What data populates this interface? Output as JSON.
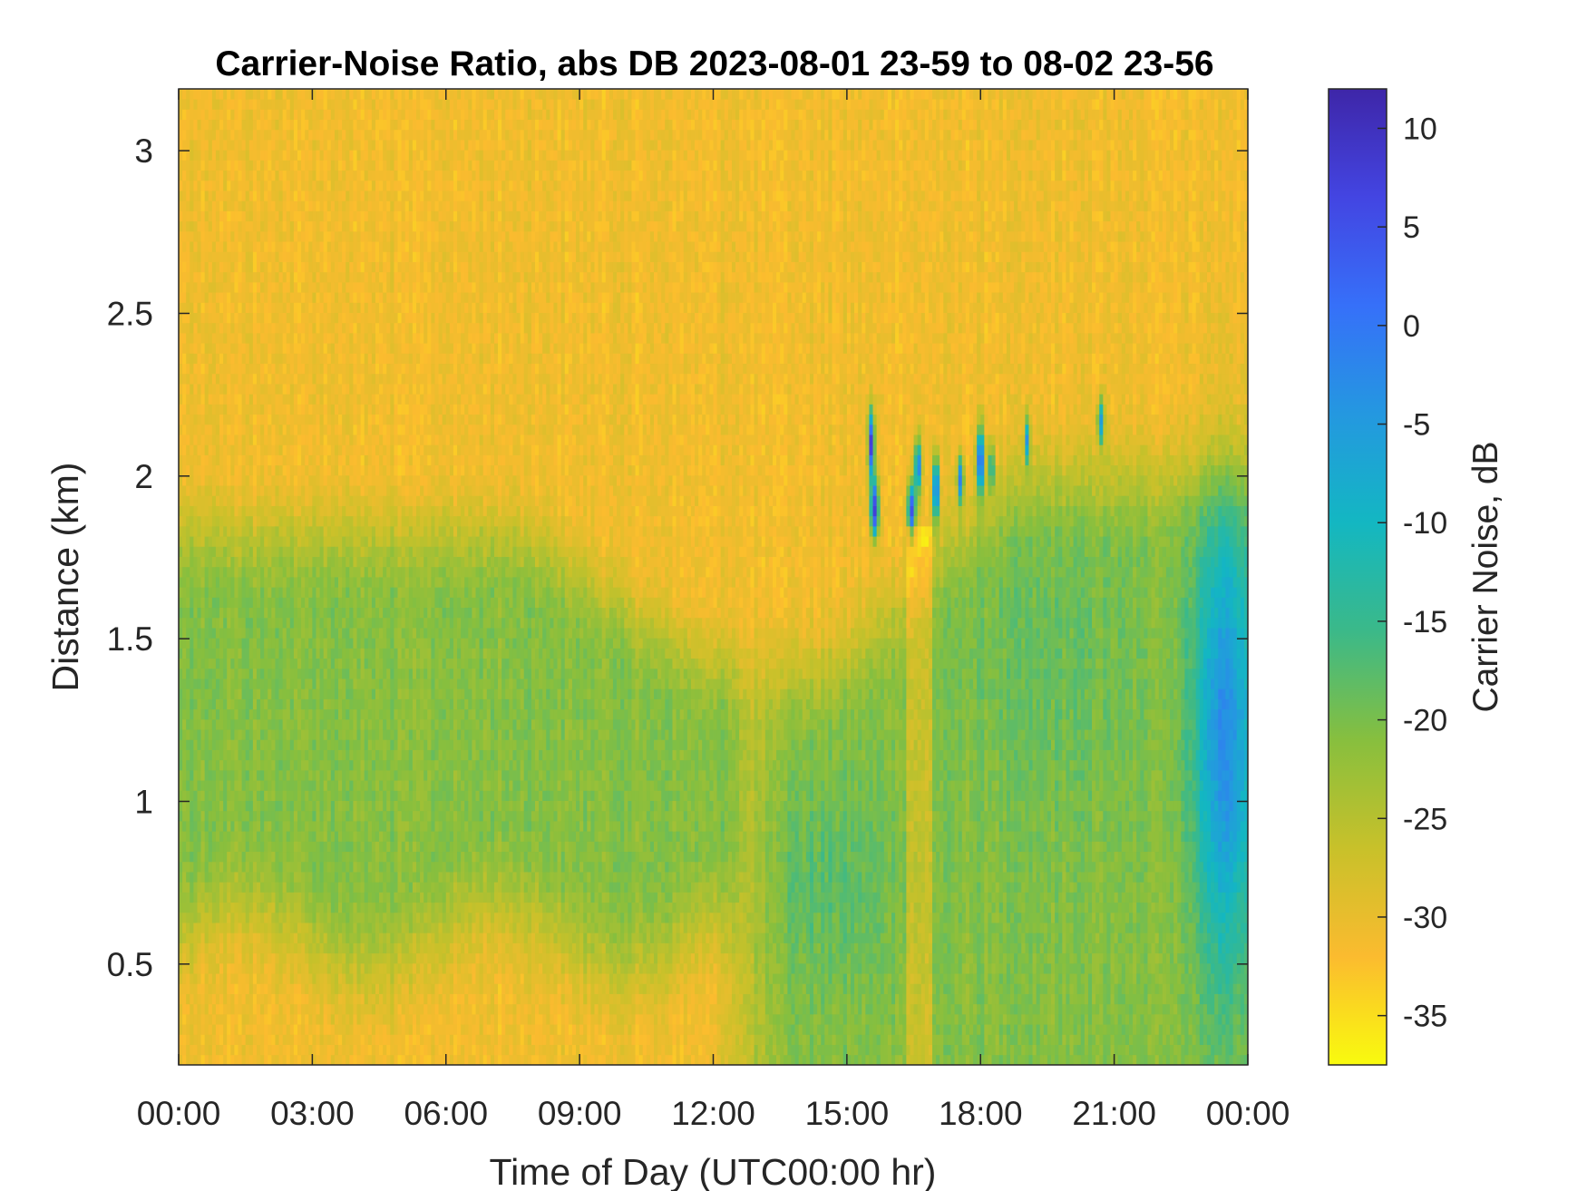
{
  "chart_data": {
    "type": "heatmap",
    "title": "Carrier-Noise Ratio, abs DB 2023-08-01 23-59 to 08-02 23-56",
    "xlabel": "Time of Day (UTC00:00 hr)",
    "ylabel": "Distance (km)",
    "xlim": [
      0,
      24
    ],
    "ylim": [
      0.19,
      3.19
    ],
    "x_ticks": [
      {
        "value": 0,
        "label": "00:00"
      },
      {
        "value": 3,
        "label": "03:00"
      },
      {
        "value": 6,
        "label": "06:00"
      },
      {
        "value": 9,
        "label": "09:00"
      },
      {
        "value": 12,
        "label": "12:00"
      },
      {
        "value": 15,
        "label": "15:00"
      },
      {
        "value": 18,
        "label": "18:00"
      },
      {
        "value": 21,
        "label": "21:00"
      },
      {
        "value": 24,
        "label": "00:00"
      }
    ],
    "y_ticks": [
      {
        "value": 0.5,
        "label": "0.5"
      },
      {
        "value": 1,
        "label": "1"
      },
      {
        "value": 1.5,
        "label": "1.5"
      },
      {
        "value": 2,
        "label": "2"
      },
      {
        "value": 2.5,
        "label": "2.5"
      },
      {
        "value": 3,
        "label": "3"
      }
    ],
    "colorbar": {
      "label": "Carrier Noise, dB",
      "range": [
        -37.5,
        12.0
      ],
      "ticks": [
        {
          "value": 10,
          "label": "10"
        },
        {
          "value": 5,
          "label": "5"
        },
        {
          "value": 0,
          "label": "0"
        },
        {
          "value": -5,
          "label": "-5"
        },
        {
          "value": -10,
          "label": "-10"
        },
        {
          "value": -15,
          "label": "-15"
        },
        {
          "value": -20,
          "label": "-20"
        },
        {
          "value": -25,
          "label": "-25"
        },
        {
          "value": -30,
          "label": "-30"
        },
        {
          "value": -35,
          "label": "-35"
        }
      ],
      "colormap": "parula",
      "colors_low_to_high": [
        "#f9fb0e",
        "#fbbb2f",
        "#c8c12a",
        "#87bf3e",
        "#3bb989",
        "#13b7c2",
        "#2498e0",
        "#3670f9",
        "#4345e2",
        "#3e26a8"
      ]
    },
    "background_level": -31,
    "grid": false,
    "features": [
      {
        "name": "low_layer_0_12h",
        "x_range": [
          0,
          12.5
        ],
        "y_range": [
          0.5,
          2.0
        ],
        "peak_value": -20
      },
      {
        "name": "afternoon_mixing_layer",
        "x_range": [
          12,
          23
        ],
        "y_range": [
          0.19,
          2.3
        ],
        "peak_value": -18
      },
      {
        "name": "late_evening_column",
        "x_range": [
          22.9,
          24
        ],
        "y_range": [
          0.3,
          1.9
        ],
        "peak_value": -13
      },
      {
        "name": "cloud_returns",
        "x_range": [
          15.5,
          20.8
        ],
        "y_range": [
          1.8,
          2.25
        ],
        "peak_value": 10
      }
    ]
  }
}
